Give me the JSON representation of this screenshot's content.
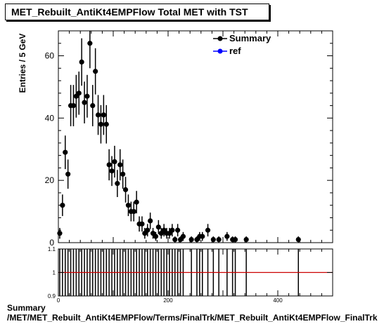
{
  "title": "MET_Rebuilt_AntiKt4EMPFlow Total MET with TST",
  "footer": {
    "line1": "Summary",
    "line2": "/MET/MET_Rebuilt_AntiKt4EMPFlow/Terms/FinalTrk/MET_Rebuilt_AntiKt4EMPFlow_FinalTrk"
  },
  "colors": {
    "summary": "#000000",
    "ref": "#0000ff",
    "ratio_line": "#cc0000"
  },
  "chart_data": [
    {
      "type": "scatter",
      "ylabel": "Entries / 5 GeV",
      "xlim": [
        0,
        500
      ],
      "ylim": [
        0,
        68
      ],
      "y_ticks": [
        0,
        20,
        40,
        60
      ],
      "legend": {
        "placement": "top-right",
        "entries": [
          "Summary",
          "ref"
        ]
      },
      "series": [
        {
          "name": "Summary",
          "x": [
            2.5,
            7.5,
            12.5,
            17.5,
            22.5,
            27.5,
            32.5,
            37.5,
            42.5,
            47.5,
            52.5,
            57.5,
            62.5,
            67.5,
            72.5,
            77.5,
            82.5,
            87.5,
            92.5,
            97.5,
            102.5,
            107.5,
            112.5,
            117.5,
            122.5,
            127.5,
            132.5,
            137.5,
            142.5,
            147.5,
            152.5,
            157.5,
            162.5,
            167.5,
            172.5,
            177.5,
            182.5,
            187.5,
            192.5,
            197.5,
            202.5,
            207.5,
            212.5,
            217.5,
            222.5,
            227.5,
            242.5,
            252.5,
            257.5,
            262.5,
            272.5,
            282.5,
            292.5,
            307.5,
            317.5,
            322.5,
            342.5,
            437.5
          ],
          "y": [
            3,
            12,
            29,
            22,
            44,
            44,
            47,
            48,
            58,
            45,
            47,
            64,
            44,
            55,
            41,
            38,
            41,
            38,
            25,
            23,
            26,
            19,
            25,
            22,
            17,
            12,
            10,
            10,
            13,
            6,
            6,
            3,
            4,
            7,
            3,
            2,
            5,
            3,
            4,
            3,
            3,
            4,
            1,
            4,
            1,
            2,
            1,
            1,
            2,
            2,
            4,
            1,
            1,
            2,
            1,
            1,
            1,
            1
          ]
        },
        {
          "name": "ref",
          "x": [],
          "y": []
        }
      ]
    },
    {
      "type": "scatter",
      "xlim": [
        0,
        500
      ],
      "ylim": [
        0.9,
        1.1
      ],
      "y_ticks": [
        0.9,
        1,
        1.1
      ],
      "x_ticks": [
        0,
        200,
        400
      ],
      "series": [
        {
          "name": "ratio",
          "x": [
            2.5,
            7.5,
            12.5,
            17.5,
            22.5,
            27.5,
            32.5,
            37.5,
            42.5,
            47.5,
            52.5,
            57.5,
            62.5,
            67.5,
            72.5,
            77.5,
            82.5,
            87.5,
            92.5,
            97.5,
            102.5,
            107.5,
            112.5,
            117.5,
            122.5,
            127.5,
            132.5,
            137.5,
            142.5,
            147.5,
            152.5,
            157.5,
            162.5,
            167.5,
            172.5,
            177.5,
            182.5,
            187.5,
            192.5,
            197.5,
            202.5,
            207.5,
            212.5,
            217.5,
            222.5,
            227.5,
            242.5,
            252.5,
            257.5,
            262.5,
            272.5,
            282.5,
            292.5,
            307.5,
            317.5,
            322.5,
            342.5,
            437.5
          ],
          "y": [
            1,
            1,
            1,
            1,
            1,
            1,
            1,
            1,
            1,
            1,
            1,
            1,
            1,
            1,
            1,
            1,
            1,
            1,
            1,
            1,
            1,
            1,
            1,
            1,
            1,
            1,
            1,
            1,
            1,
            1,
            1,
            1,
            1,
            1,
            1,
            1,
            1,
            1,
            1,
            1,
            1,
            1,
            1,
            1,
            1,
            1,
            1,
            1,
            1,
            1,
            1,
            1,
            1,
            1,
            1,
            1,
            1,
            1
          ],
          "reference_line": 1
        }
      ]
    }
  ]
}
